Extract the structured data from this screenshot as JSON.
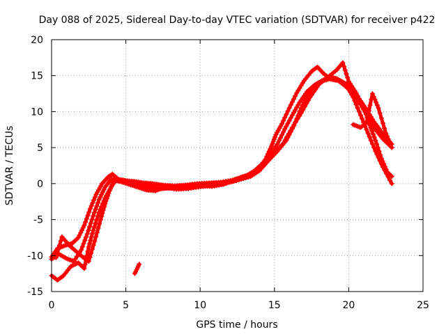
{
  "chart_data": {
    "type": "scatter",
    "title": "Day 088 of 2025, Sidereal Day-to-day VTEC variation (SDTVAR) for receiver p422",
    "xlabel": "GPS time / hours",
    "ylabel": "SDTVAR / TECUs",
    "xlim": [
      0,
      25
    ],
    "ylim": [
      -15,
      20
    ],
    "xticks": [
      0,
      5,
      10,
      15,
      20,
      25
    ],
    "yticks": [
      -15,
      -10,
      -5,
      0,
      5,
      10,
      15,
      20
    ],
    "grid": true,
    "marker": "plus",
    "color": "#ff0000",
    "series": [
      {
        "name": "trace-1",
        "points": [
          [
            0.0,
            -10.2
          ],
          [
            0.4,
            -9.0
          ],
          [
            0.9,
            -8.6
          ],
          [
            1.4,
            -8.3
          ],
          [
            1.8,
            -7.5
          ],
          [
            2.2,
            -5.8
          ],
          [
            2.6,
            -3.5
          ],
          [
            3.0,
            -1.5
          ],
          [
            3.4,
            0.0
          ],
          [
            3.8,
            0.9
          ],
          [
            4.1,
            1.3
          ],
          [
            4.5,
            0.6
          ],
          [
            5.0,
            0.4
          ],
          [
            5.6,
            0.3
          ],
          [
            6.2,
            0.1
          ],
          [
            6.8,
            0.0
          ],
          [
            7.5,
            -0.2
          ],
          [
            8.3,
            -0.3
          ],
          [
            9.0,
            -0.2
          ],
          [
            9.8,
            0.0
          ],
          [
            10.6,
            0.1
          ],
          [
            11.4,
            0.2
          ],
          [
            12.2,
            0.5
          ],
          [
            12.8,
            0.9
          ],
          [
            13.4,
            1.3
          ],
          [
            14.0,
            2.2
          ],
          [
            14.4,
            3.4
          ],
          [
            14.8,
            5.2
          ],
          [
            15.1,
            6.8
          ],
          [
            15.5,
            8.3
          ],
          [
            16.0,
            10.5
          ],
          [
            16.5,
            12.6
          ],
          [
            17.0,
            14.3
          ],
          [
            17.5,
            15.6
          ],
          [
            17.9,
            16.2
          ],
          [
            18.3,
            15.3
          ],
          [
            18.8,
            14.5
          ],
          [
            19.3,
            14.3
          ],
          [
            19.8,
            13.5
          ],
          [
            20.3,
            12.4
          ],
          [
            20.8,
            11.0
          ],
          [
            21.3,
            9.2
          ],
          [
            21.8,
            7.5
          ],
          [
            22.3,
            6.2
          ],
          [
            22.9,
            5.0
          ]
        ]
      },
      {
        "name": "trace-2",
        "points": [
          [
            0.0,
            -10.5
          ],
          [
            0.5,
            -9.8
          ],
          [
            1.0,
            -10.4
          ],
          [
            1.5,
            -10.8
          ],
          [
            2.0,
            -9.2
          ],
          [
            2.4,
            -7.0
          ],
          [
            2.8,
            -4.5
          ],
          [
            3.2,
            -2.2
          ],
          [
            3.6,
            -0.5
          ],
          [
            4.0,
            0.6
          ],
          [
            4.4,
            0.5
          ],
          [
            5.0,
            0.2
          ],
          [
            5.8,
            -0.2
          ],
          [
            6.6,
            -0.4
          ],
          [
            7.4,
            -0.7
          ],
          [
            8.2,
            -0.6
          ],
          [
            9.0,
            -0.4
          ],
          [
            9.8,
            -0.3
          ],
          [
            10.6,
            -0.1
          ],
          [
            11.4,
            0.0
          ],
          [
            12.2,
            0.3
          ],
          [
            13.0,
            0.9
          ],
          [
            13.6,
            1.7
          ],
          [
            14.2,
            2.8
          ],
          [
            14.7,
            4.0
          ],
          [
            15.2,
            5.5
          ],
          [
            15.7,
            7.6
          ],
          [
            16.2,
            9.5
          ],
          [
            16.7,
            11.3
          ],
          [
            17.2,
            12.8
          ],
          [
            17.7,
            13.7
          ],
          [
            18.2,
            14.3
          ],
          [
            18.7,
            14.8
          ],
          [
            19.2,
            14.6
          ],
          [
            19.7,
            14.0
          ],
          [
            20.2,
            13.4
          ],
          [
            20.7,
            11.8
          ],
          [
            21.2,
            10.3
          ],
          [
            21.7,
            8.6
          ],
          [
            22.2,
            7.2
          ],
          [
            22.9,
            5.5
          ]
        ]
      },
      {
        "name": "trace-3",
        "points": [
          [
            0.0,
            -12.8
          ],
          [
            0.4,
            -13.4
          ],
          [
            0.8,
            -12.8
          ],
          [
            1.3,
            -11.5
          ],
          [
            1.8,
            -11.0
          ],
          [
            2.2,
            -11.8
          ],
          [
            2.5,
            -8.8
          ],
          [
            2.8,
            -6.5
          ],
          [
            3.2,
            -4.0
          ],
          [
            3.6,
            -2.0
          ],
          [
            4.0,
            -0.5
          ],
          [
            4.3,
            0.4
          ],
          [
            4.8,
            0.5
          ],
          [
            5.5,
            0.1
          ],
          [
            6.2,
            -0.3
          ],
          [
            7.0,
            -0.8
          ],
          [
            7.8,
            -0.6
          ],
          [
            8.6,
            -0.7
          ],
          [
            9.4,
            -0.6
          ],
          [
            10.2,
            -0.4
          ],
          [
            11.0,
            -0.2
          ],
          [
            11.8,
            0.1
          ],
          [
            12.6,
            0.5
          ],
          [
            13.4,
            1.0
          ],
          [
            14.0,
            1.8
          ],
          [
            14.6,
            3.2
          ],
          [
            15.2,
            4.5
          ],
          [
            15.8,
            6.0
          ],
          [
            16.3,
            8.0
          ],
          [
            16.8,
            10.5
          ],
          [
            17.3,
            12.5
          ],
          [
            17.8,
            13.6
          ],
          [
            18.3,
            14.3
          ],
          [
            18.8,
            14.6
          ],
          [
            19.3,
            14.4
          ],
          [
            19.8,
            13.8
          ],
          [
            20.3,
            12.0
          ],
          [
            20.8,
            9.5
          ],
          [
            21.3,
            7.0
          ],
          [
            21.8,
            4.5
          ],
          [
            22.3,
            2.3
          ],
          [
            22.9,
            0.0
          ]
        ]
      },
      {
        "name": "trace-4",
        "points": [
          [
            0.3,
            -10.3
          ],
          [
            0.7,
            -7.4
          ],
          [
            1.2,
            -8.6
          ],
          [
            1.7,
            -9.5
          ],
          [
            2.1,
            -10.2
          ],
          [
            2.5,
            -10.8
          ],
          [
            2.9,
            -8.0
          ],
          [
            3.3,
            -5.0
          ],
          [
            3.6,
            -2.8
          ],
          [
            3.9,
            -1.0
          ],
          [
            4.2,
            0.5
          ],
          [
            4.6,
            0.3
          ],
          [
            5.2,
            -0.1
          ],
          [
            5.8,
            -0.5
          ],
          [
            6.4,
            -0.9
          ],
          [
            7.0,
            -1.0
          ],
          [
            7.6,
            -0.5
          ],
          [
            8.4,
            -0.8
          ],
          [
            9.2,
            -0.7
          ],
          [
            10.0,
            -0.3
          ],
          [
            10.8,
            -0.4
          ],
          [
            11.6,
            -0.1
          ],
          [
            12.4,
            0.6
          ],
          [
            13.2,
            1.2
          ],
          [
            13.8,
            1.9
          ],
          [
            14.4,
            3.0
          ],
          [
            15.0,
            4.2
          ],
          [
            15.6,
            5.6
          ],
          [
            16.2,
            7.8
          ],
          [
            16.8,
            9.8
          ],
          [
            17.4,
            12.0
          ],
          [
            18.0,
            13.8
          ],
          [
            18.6,
            14.8
          ],
          [
            19.2,
            15.8
          ],
          [
            19.6,
            16.8
          ],
          [
            20.0,
            14.2
          ],
          [
            20.5,
            12.6
          ],
          [
            21.0,
            10.6
          ],
          [
            21.4,
            8.2
          ],
          [
            21.8,
            6.0
          ],
          [
            22.2,
            3.5
          ],
          [
            22.6,
            1.6
          ],
          [
            22.9,
            1.0
          ]
        ]
      },
      {
        "name": "trace-5",
        "points": [
          [
            5.6,
            -12.5
          ],
          [
            5.9,
            -11.2
          ]
        ]
      },
      {
        "name": "trace-6",
        "points": [
          [
            20.3,
            8.2
          ],
          [
            20.8,
            7.8
          ],
          [
            21.2,
            8.5
          ],
          [
            21.6,
            12.5
          ],
          [
            22.0,
            10.5
          ],
          [
            22.5,
            7.0
          ],
          [
            22.9,
            5.0
          ]
        ]
      }
    ]
  }
}
